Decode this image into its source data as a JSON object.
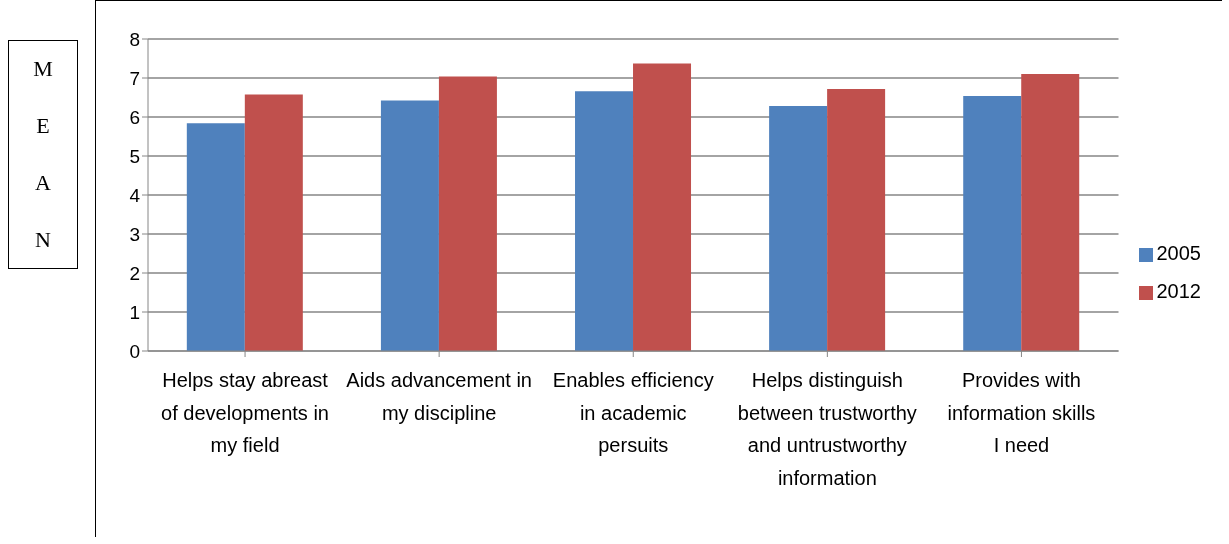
{
  "chart_data": {
    "type": "bar",
    "ylabel": "MEAN",
    "categories": [
      "Helps stay abreast of developments in my field",
      "Aids advancement in my discipline",
      "Enables efficiency in academic persuits",
      "Helps distinguish between trustworthy and untrustworthy information",
      "Provides with information skills I need"
    ],
    "series": [
      {
        "name": "2005",
        "color": "#4f81bd",
        "values": [
          5.84,
          6.42,
          6.66,
          6.28,
          6.54
        ]
      },
      {
        "name": "2012",
        "color": "#c0504d",
        "values": [
          6.58,
          7.04,
          7.37,
          6.72,
          7.1
        ]
      }
    ],
    "ylim": [
      0,
      8
    ],
    "yticks": [
      0,
      1,
      2,
      3,
      4,
      5,
      6,
      7,
      8
    ],
    "grid": "y",
    "legend": "right"
  }
}
